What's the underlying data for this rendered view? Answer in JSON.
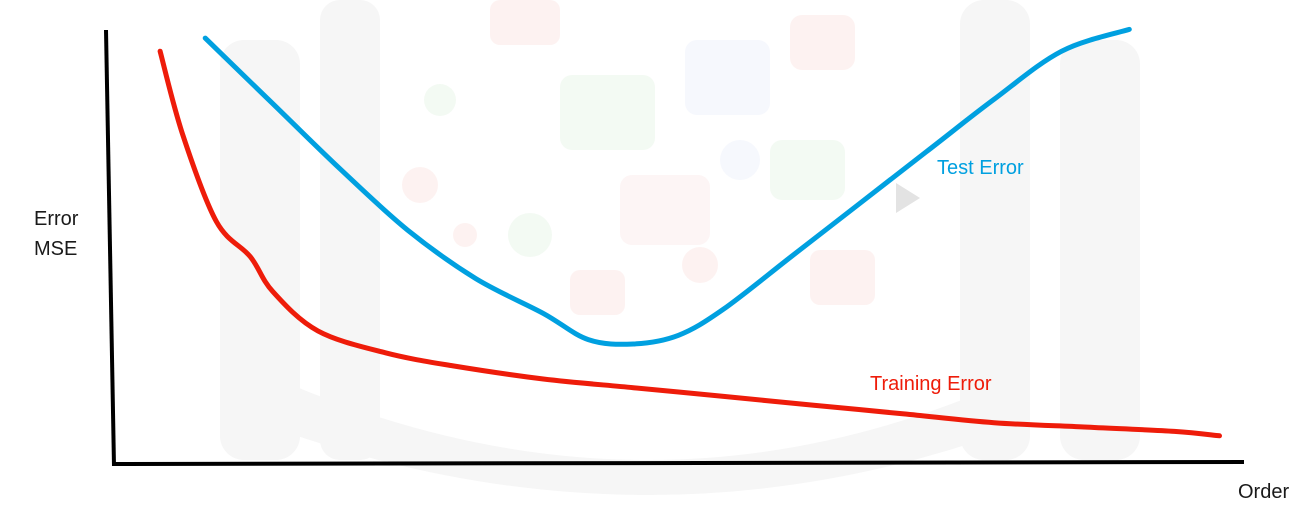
{
  "chart_data": {
    "type": "line",
    "title": "",
    "xlabel": "Order",
    "ylabel_lines": [
      "Error",
      "MSE"
    ],
    "xlim": [
      0,
      100
    ],
    "ylim": [
      0,
      100
    ],
    "grid": false,
    "x_ticks": [],
    "y_ticks": [],
    "series": [
      {
        "name": "Test Error",
        "color": "#00a0e0",
        "x": [
          8,
          14,
          20,
          26,
          32,
          38,
          42,
          46,
          50,
          54,
          60,
          66,
          72,
          78,
          84,
          90
        ],
        "y": [
          97,
          82,
          67,
          53,
          42,
          34,
          28,
          27,
          29,
          35,
          47,
          59,
          71,
          83,
          94,
          99
        ]
      },
      {
        "name": "Training Error",
        "color": "#ee1c0a",
        "x": [
          4,
          6,
          9,
          12,
          14,
          18,
          24,
          30,
          38,
          46,
          54,
          62,
          70,
          78,
          86,
          94,
          98
        ],
        "y": [
          94,
          75,
          55,
          47,
          39,
          30,
          25,
          22,
          19,
          17,
          15,
          13,
          11,
          9,
          8,
          7,
          6
        ]
      }
    ],
    "annotations": [
      {
        "text": "Test Error",
        "color": "#00a0e0"
      },
      {
        "text": "Training Error",
        "color": "#ee1c0a"
      }
    ]
  }
}
